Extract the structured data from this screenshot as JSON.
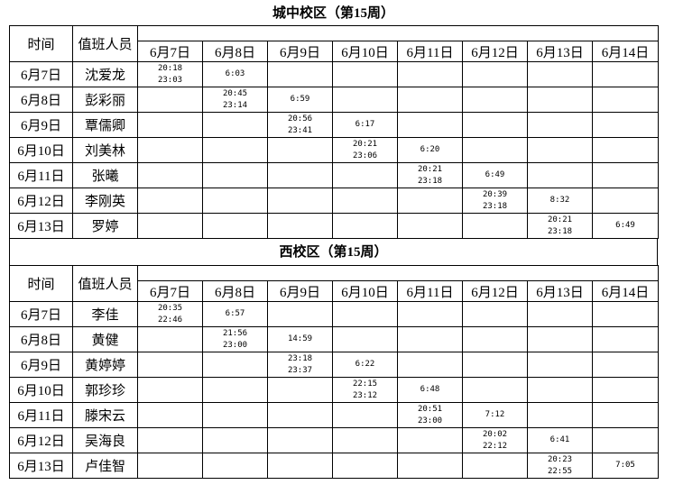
{
  "sections": [
    {
      "title": "城中校区（第15周）",
      "col_time": "时间",
      "col_person": "值班人员",
      "dates": [
        "6月7日",
        "6月8日",
        "6月9日",
        "6月10日",
        "6月11日",
        "6月12日",
        "6月13日",
        "6月14日"
      ],
      "rows": [
        {
          "date": "6月7日",
          "person": "沈爱龙",
          "cells": [
            "20:18\n23:03",
            "6:03",
            "",
            "",
            "",
            "",
            "",
            ""
          ]
        },
        {
          "date": "6月8日",
          "person": "彭彩丽",
          "cells": [
            "",
            "20:45\n23:14",
            "6:59",
            "",
            "",
            "",
            "",
            ""
          ]
        },
        {
          "date": "6月9日",
          "person": "覃儒卿",
          "cells": [
            "",
            "",
            "20:56\n23:41",
            "6:17",
            "",
            "",
            "",
            ""
          ]
        },
        {
          "date": "6月10日",
          "person": "刘美林",
          "cells": [
            "",
            "",
            "",
            "20:21\n23:06",
            "6:20",
            "",
            "",
            ""
          ]
        },
        {
          "date": "6月11日",
          "person": "张曦",
          "cells": [
            "",
            "",
            "",
            "",
            "20:21\n23:18",
            "6:49",
            "",
            ""
          ]
        },
        {
          "date": "6月12日",
          "person": "李刚英",
          "cells": [
            "",
            "",
            "",
            "",
            "",
            "20:39\n23:18",
            "8:32",
            ""
          ]
        },
        {
          "date": "6月13日",
          "person": "罗婷",
          "cells": [
            "",
            "",
            "",
            "",
            "",
            "",
            "20:21\n23:18",
            "6:49"
          ]
        }
      ]
    },
    {
      "title": "西校区（第15周）",
      "col_time": "时间",
      "col_person": "值班人员",
      "dates": [
        "6月7日",
        "6月8日",
        "6月9日",
        "6月10日",
        "6月11日",
        "6月12日",
        "6月13日",
        "6月14日"
      ],
      "rows": [
        {
          "date": "6月7日",
          "person": "李佳",
          "cells": [
            "20:35\n22:46",
            "6:57",
            "",
            "",
            "",
            "",
            "",
            ""
          ]
        },
        {
          "date": "6月8日",
          "person": "黄健",
          "cells": [
            "",
            "21:56\n23:00",
            "14:59",
            "",
            "",
            "",
            "",
            ""
          ]
        },
        {
          "date": "6月9日",
          "person": "黄婷婷",
          "cells": [
            "",
            "",
            "23:18\n23:37",
            "6:22",
            "",
            "",
            "",
            ""
          ]
        },
        {
          "date": "6月10日",
          "person": "郭珍珍",
          "cells": [
            "",
            "",
            "",
            "22:15\n23:12",
            "6:48",
            "",
            "",
            ""
          ]
        },
        {
          "date": "6月11日",
          "person": "滕宋云",
          "cells": [
            "",
            "",
            "",
            "",
            "20:51\n23:00",
            "7:12",
            "",
            ""
          ]
        },
        {
          "date": "6月12日",
          "person": "吴海良",
          "cells": [
            "",
            "",
            "",
            "",
            "",
            "20:02\n22:12",
            "6:41",
            ""
          ]
        },
        {
          "date": "6月13日",
          "person": "卢佳智",
          "cells": [
            "",
            "",
            "",
            "",
            "",
            "",
            "20:23\n22:55",
            "7:05"
          ]
        }
      ]
    }
  ]
}
